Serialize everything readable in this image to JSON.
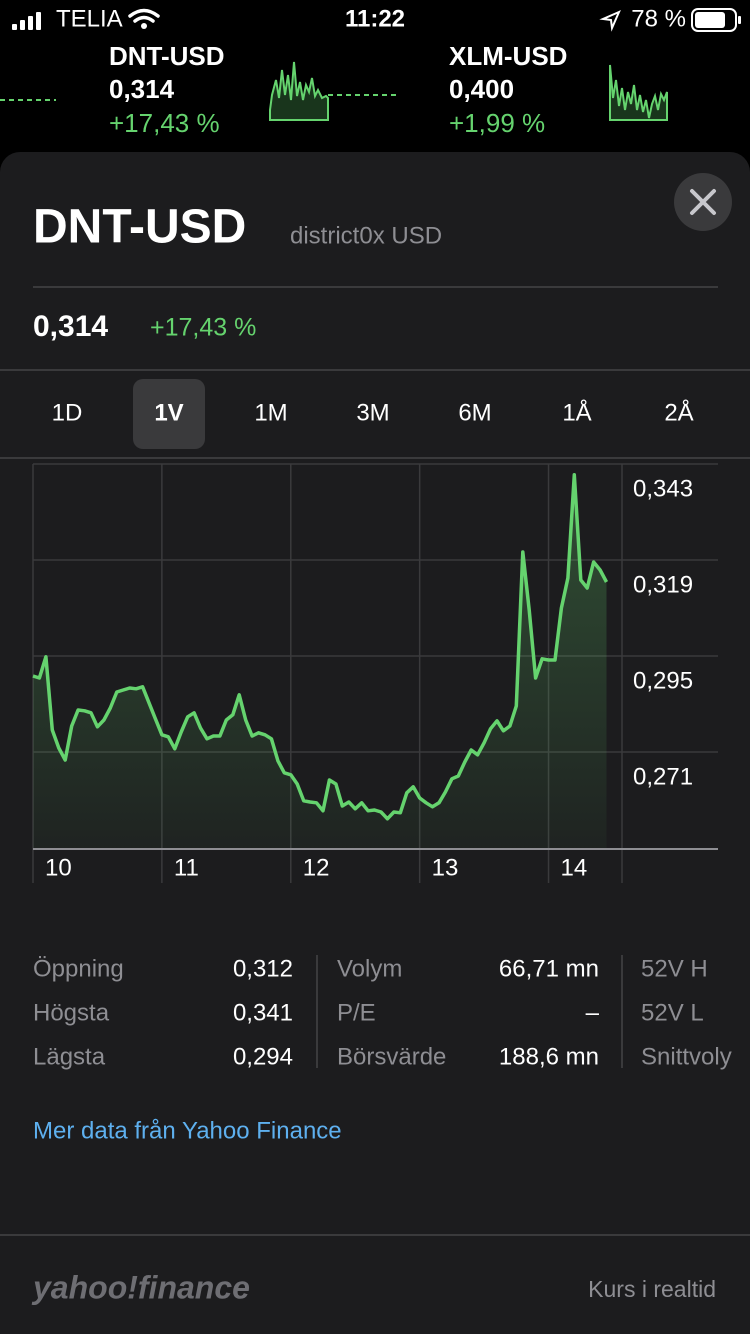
{
  "status_bar": {
    "carrier": "TELIA",
    "time": "11:22",
    "battery": "78 %"
  },
  "ticker": [
    {
      "symbol": "DNT-USD",
      "price": "0,314",
      "change": "+17,43 %"
    },
    {
      "symbol": "XLM-USD",
      "price": "0,400",
      "change": "+1,99 %"
    }
  ],
  "header": {
    "symbol": "DNT-USD",
    "name": "district0x USD",
    "price": "0,314",
    "change": "+17,43 %"
  },
  "ranges": [
    "1D",
    "1V",
    "1M",
    "3M",
    "6M",
    "1Å",
    "2Å"
  ],
  "selected_range": "1V",
  "chart_data": {
    "type": "line",
    "x": [
      10,
      10.05,
      10.1,
      10.15,
      10.2,
      10.25,
      10.3,
      10.35,
      10.4,
      10.45,
      10.5,
      10.55,
      10.6,
      10.65,
      10.7,
      10.75,
      10.8,
      10.85,
      10.9,
      10.95,
      11,
      11.05,
      11.1,
      11.15,
      11.2,
      11.25,
      11.3,
      11.35,
      11.4,
      11.45,
      11.5,
      11.55,
      11.6,
      11.65,
      11.7,
      11.75,
      11.8,
      11.85,
      11.9,
      11.95,
      12,
      12.05,
      12.1,
      12.15,
      12.2,
      12.25,
      12.3,
      12.35,
      12.4,
      12.45,
      12.5,
      12.55,
      12.6,
      12.65,
      12.7,
      12.75,
      12.8,
      12.85,
      12.9,
      12.95,
      13,
      13.05,
      13.1,
      13.15,
      13.2,
      13.25,
      13.3,
      13.35,
      13.4,
      13.45,
      13.5,
      13.55,
      13.6,
      13.65,
      13.7,
      13.75,
      13.8,
      13.85,
      13.9,
      13.95,
      14,
      14.05,
      14.1,
      14.15,
      14.2,
      14.25,
      14.3,
      14.35,
      14.4,
      14.45
    ],
    "series": [
      {
        "color": "#65d36e",
        "values": [
          0.29,
          0.2895,
          0.2948,
          0.2765,
          0.272,
          0.269,
          0.2775,
          0.2815,
          0.2813,
          0.2808,
          0.2773,
          0.279,
          0.282,
          0.286,
          0.2865,
          0.287,
          0.2868,
          0.2873,
          0.2833,
          0.2793,
          0.2753,
          0.2748,
          0.2718,
          0.276,
          0.2798,
          0.2808,
          0.277,
          0.2743,
          0.275,
          0.275,
          0.279,
          0.2803,
          0.2853,
          0.279,
          0.275,
          0.2758,
          0.2753,
          0.2743,
          0.2688,
          0.2658,
          0.2653,
          0.263,
          0.2588,
          0.2585,
          0.2583,
          0.2563,
          0.264,
          0.263,
          0.2575,
          0.2585,
          0.2568,
          0.2583,
          0.2563,
          0.2565,
          0.256,
          0.2543,
          0.256,
          0.2558,
          0.2608,
          0.2623,
          0.2595,
          0.2583,
          0.2573,
          0.2583,
          0.261,
          0.2643,
          0.265,
          0.2685,
          0.2715,
          0.2703,
          0.2733,
          0.2768,
          0.2788,
          0.2763,
          0.2775,
          0.2825,
          0.321,
          0.3065,
          0.2895,
          0.2943,
          0.294,
          0.294,
          0.307,
          0.3145,
          0.3403,
          0.314,
          0.312,
          0.3185,
          0.3165,
          0.3135
        ]
      }
    ],
    "xlim": [
      10,
      14.57
    ],
    "xticks": [
      10,
      11,
      12,
      13,
      14
    ],
    "ylim": [
      0.247,
      0.343
    ],
    "yticks": [
      {
        "value": 0.343,
        "label": "0,343"
      },
      {
        "value": 0.319,
        "label": "0,319"
      },
      {
        "value": 0.295,
        "label": "0,295"
      },
      {
        "value": 0.271,
        "label": "0,271"
      }
    ],
    "grid": true
  },
  "stats": [
    [
      {
        "label": "Öppning",
        "value": "0,312"
      },
      {
        "label": "Högsta",
        "value": "0,341"
      },
      {
        "label": "Lägsta",
        "value": "0,294"
      }
    ],
    [
      {
        "label": "Volym",
        "value": "66,71 mn"
      },
      {
        "label": "P/E",
        "value": "–"
      },
      {
        "label": "Börsvärde",
        "value": "188,6 mn"
      }
    ],
    [
      {
        "label": "52V H"
      },
      {
        "label": "52V L"
      },
      {
        "label": "Snittvoly"
      }
    ]
  ],
  "link": "Mer data från Yahoo Finance",
  "footer": {
    "brand": "yahoo!finance",
    "note": "Kurs i realtid"
  }
}
